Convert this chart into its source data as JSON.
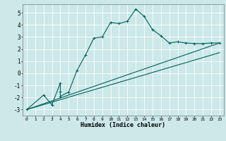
{
  "xlabel": "Humidex (Indice chaleur)",
  "bg_color": "#cce8e8",
  "grid_color": "#ffffff",
  "line_color": "#006060",
  "xlim": [
    -0.5,
    23.5
  ],
  "ylim": [
    -3.5,
    5.7
  ],
  "xticks": [
    0,
    1,
    2,
    3,
    4,
    5,
    6,
    7,
    8,
    9,
    10,
    11,
    12,
    13,
    14,
    15,
    16,
    17,
    18,
    19,
    20,
    21,
    22,
    23
  ],
  "yticks": [
    -3,
    -2,
    -1,
    0,
    1,
    2,
    3,
    4,
    5
  ],
  "curve1_x": [
    0,
    2,
    3,
    4,
    4,
    4,
    5,
    6,
    7,
    8,
    9,
    10,
    11,
    12,
    13,
    14,
    15,
    16,
    17,
    18,
    19,
    20,
    21,
    22,
    23
  ],
  "curve1_y": [
    -3.0,
    -1.8,
    -2.6,
    -0.8,
    -1.5,
    -1.9,
    -1.55,
    0.25,
    1.5,
    2.9,
    3.0,
    4.2,
    4.1,
    4.3,
    5.3,
    4.7,
    3.6,
    3.1,
    2.5,
    2.6,
    2.5,
    2.45,
    2.45,
    2.5,
    2.5
  ],
  "line1_x": [
    0,
    23
  ],
  "line1_y": [
    -3.0,
    2.5
  ],
  "line2_x": [
    0,
    23
  ],
  "line2_y": [
    -3.0,
    1.7
  ],
  "marker": "+"
}
